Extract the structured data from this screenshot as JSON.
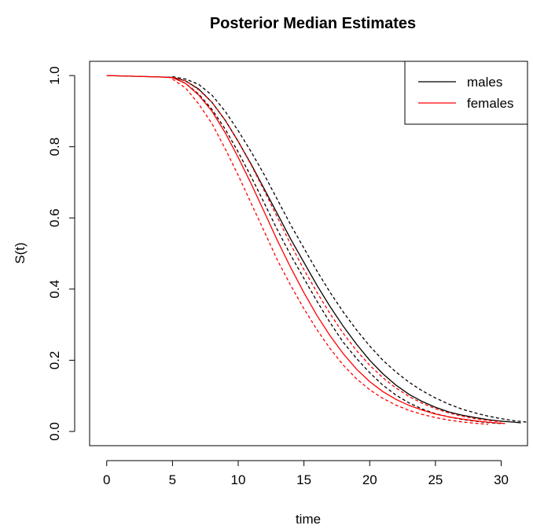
{
  "chart_data": {
    "type": "line",
    "title": "Posterior Median Estimates",
    "xlabel": "time",
    "ylabel": "S(t)",
    "xlim": [
      -1.3,
      32
    ],
    "ylim": [
      -0.04,
      1.04
    ],
    "xticks": [
      0,
      5,
      10,
      15,
      20,
      25,
      30
    ],
    "yticks": [
      0.0,
      0.2,
      0.4,
      0.6,
      0.8,
      1.0
    ],
    "xtick_labels": [
      "0",
      "5",
      "10",
      "15",
      "20",
      "25",
      "30"
    ],
    "ytick_labels": [
      "0.0",
      "0.2",
      "0.4",
      "0.6",
      "0.8",
      "1.0"
    ],
    "grid": false,
    "legend_position": "top-right",
    "legend": [
      {
        "label": "males",
        "color": "#000000"
      },
      {
        "label": "females",
        "color": "#ff0000"
      }
    ],
    "series": [
      {
        "name": "males",
        "color": "#000000",
        "style": "solid",
        "x": [
          0,
          2,
          4,
          5,
          6,
          7,
          8,
          9,
          10,
          11,
          12,
          13,
          14,
          15,
          16,
          17,
          18,
          19,
          20,
          21,
          22,
          23,
          24,
          25,
          26,
          27,
          28,
          29,
          30,
          31,
          31.5
        ],
        "y": [
          1.0,
          0.998,
          0.996,
          0.995,
          0.985,
          0.962,
          0.925,
          0.875,
          0.815,
          0.75,
          0.68,
          0.61,
          0.54,
          0.475,
          0.41,
          0.35,
          0.295,
          0.245,
          0.2,
          0.162,
          0.13,
          0.104,
          0.084,
          0.068,
          0.055,
          0.046,
          0.039,
          0.033,
          0.029,
          0.026,
          0.024
        ]
      },
      {
        "name": "males (lower)",
        "color": "#000000",
        "style": "dashed",
        "x": [
          5,
          6,
          7,
          8,
          9,
          10,
          11,
          12,
          13,
          14,
          15,
          16,
          17,
          18,
          19,
          20,
          21,
          22,
          23,
          24,
          25,
          26,
          27,
          28,
          29,
          30
        ],
        "y": [
          0.995,
          0.978,
          0.948,
          0.905,
          0.85,
          0.785,
          0.715,
          0.64,
          0.565,
          0.495,
          0.43,
          0.365,
          0.305,
          0.25,
          0.205,
          0.165,
          0.13,
          0.102,
          0.08,
          0.063,
          0.05,
          0.041,
          0.034,
          0.029,
          0.025,
          0.022
        ]
      },
      {
        "name": "males (upper)",
        "color": "#000000",
        "style": "dashed",
        "x": [
          5,
          6,
          7,
          8,
          9,
          10,
          11,
          12,
          13,
          14,
          15,
          16,
          17,
          18,
          19,
          20,
          21,
          22,
          23,
          24,
          25,
          26,
          27,
          28,
          29,
          30,
          31,
          32
        ],
        "y": [
          0.997,
          0.99,
          0.975,
          0.945,
          0.9,
          0.845,
          0.785,
          0.72,
          0.65,
          0.58,
          0.515,
          0.45,
          0.39,
          0.335,
          0.285,
          0.24,
          0.2,
          0.167,
          0.138,
          0.114,
          0.094,
          0.077,
          0.063,
          0.052,
          0.043,
          0.036,
          0.03,
          0.026
        ]
      },
      {
        "name": "females",
        "color": "#ff0000",
        "style": "solid",
        "x": [
          0,
          2,
          4,
          5,
          6,
          7,
          8,
          9,
          10,
          11,
          12,
          13,
          14,
          15,
          16,
          17,
          18,
          19,
          20,
          21,
          22,
          23,
          24,
          25,
          26,
          27,
          28,
          29,
          30,
          30.3
        ],
        "y": [
          1.0,
          0.998,
          0.996,
          0.994,
          0.978,
          0.945,
          0.9,
          0.84,
          0.77,
          0.695,
          0.615,
          0.535,
          0.46,
          0.39,
          0.325,
          0.268,
          0.218,
          0.175,
          0.14,
          0.112,
          0.09,
          0.073,
          0.06,
          0.049,
          0.041,
          0.035,
          0.03,
          0.026,
          0.023,
          0.022
        ]
      },
      {
        "name": "females (lower)",
        "color": "#ff0000",
        "style": "dashed",
        "x": [
          5,
          6,
          7,
          8,
          9,
          10,
          11,
          12,
          13,
          14,
          15,
          16,
          17,
          18,
          19,
          20,
          21,
          22,
          23,
          24,
          25,
          26,
          27,
          28,
          29
        ],
        "y": [
          0.99,
          0.965,
          0.92,
          0.865,
          0.795,
          0.72,
          0.64,
          0.56,
          0.48,
          0.41,
          0.345,
          0.285,
          0.232,
          0.186,
          0.148,
          0.117,
          0.093,
          0.074,
          0.059,
          0.048,
          0.039,
          0.032,
          0.027,
          0.023,
          0.02
        ]
      },
      {
        "name": "females (upper)",
        "color": "#ff0000",
        "style": "dashed",
        "x": [
          5,
          6,
          7,
          8,
          9,
          10,
          11,
          12,
          13,
          14,
          15,
          16,
          17,
          18,
          19,
          20,
          21,
          22,
          23,
          24,
          25,
          26,
          27,
          28,
          29,
          30
        ],
        "y": [
          0.995,
          0.985,
          0.96,
          0.925,
          0.875,
          0.815,
          0.748,
          0.675,
          0.6,
          0.525,
          0.455,
          0.39,
          0.33,
          0.275,
          0.227,
          0.186,
          0.151,
          0.122,
          0.098,
          0.079,
          0.064,
          0.052,
          0.043,
          0.036,
          0.031,
          0.027
        ]
      }
    ]
  }
}
